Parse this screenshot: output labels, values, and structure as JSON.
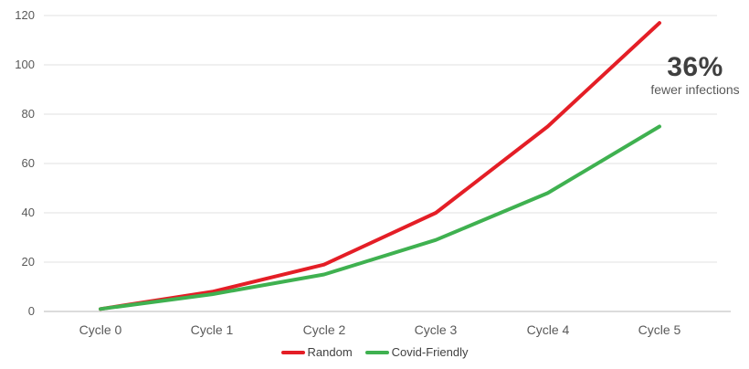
{
  "chart_data": {
    "type": "line",
    "categories": [
      "Cycle 0",
      "Cycle 1",
      "Cycle 2",
      "Cycle 3",
      "Cycle 4",
      "Cycle 5"
    ],
    "series": [
      {
        "name": "Random",
        "color": "#e41e26",
        "values": [
          1,
          8,
          19,
          40,
          75,
          117
        ]
      },
      {
        "name": "Covid-Friendly",
        "color": "#3fb150",
        "values": [
          1,
          7,
          15,
          29,
          48,
          75
        ]
      }
    ],
    "yticks": [
      0,
      20,
      40,
      60,
      80,
      100,
      120
    ],
    "ylim": [
      0,
      120
    ],
    "grid": "horizontal",
    "legend_position": "bottom",
    "title": "",
    "xlabel": "",
    "ylabel": "",
    "annotation": {
      "value": "36%",
      "label": "fewer infections"
    }
  },
  "colors": {
    "gridline": "#e2e2e2",
    "axis_line": "#d0d0d0",
    "tick_text": "#595959",
    "annotation_value": "#3f3f3f",
    "annotation_label": "#595959"
  }
}
